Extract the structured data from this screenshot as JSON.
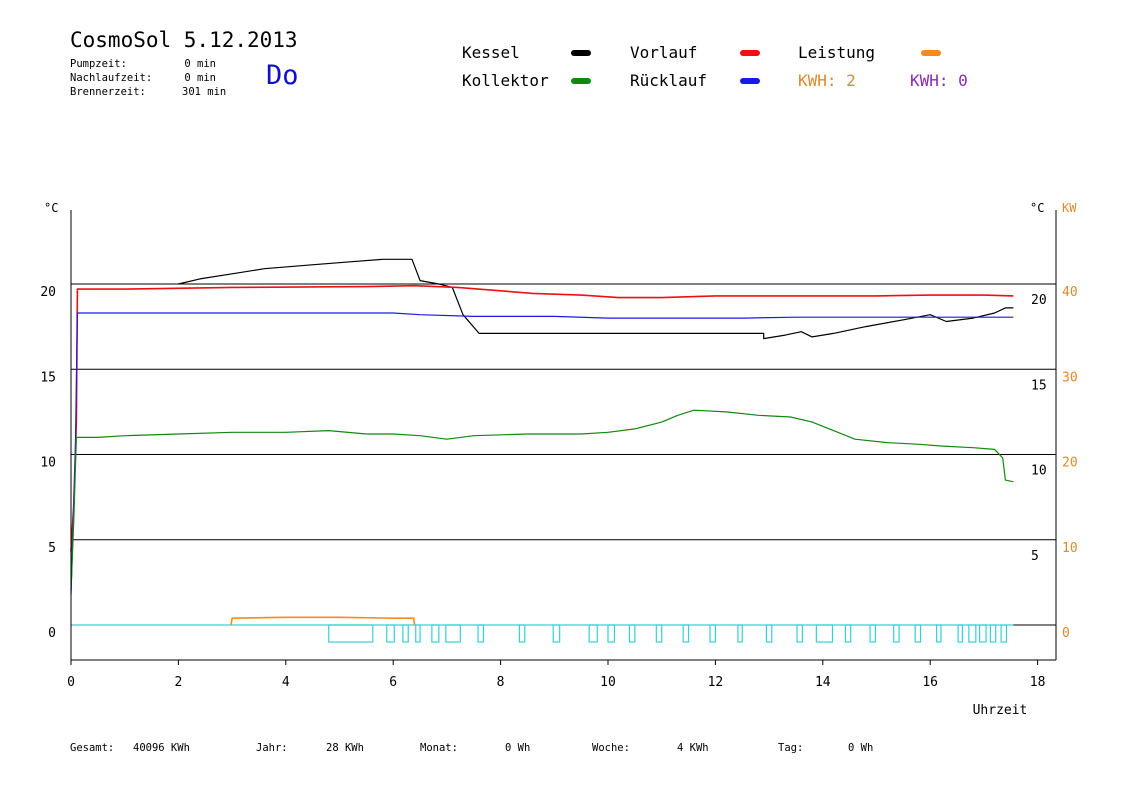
{
  "header": {
    "title": "CosmoSol 5.12.2013",
    "weekday": "Do",
    "stats": [
      {
        "label": "Pumpzeit:",
        "value": "0 min"
      },
      {
        "label": "Nachlaufzeit:",
        "value": "0 min"
      },
      {
        "label": "Brennerzeit:",
        "value": "301 min"
      }
    ]
  },
  "legend": {
    "kessel": {
      "label": "Kessel",
      "color": "#000000"
    },
    "vorlauf": {
      "label": "Vorlauf",
      "color": "#ee1111"
    },
    "leistung": {
      "label": "Leistung",
      "color": "#f58a1f"
    },
    "kollektor": {
      "label": "Kollektor",
      "color": "#118811"
    },
    "ruecklauf": {
      "label": "Rücklauf",
      "color": "#1a1ae6"
    },
    "kwh1": {
      "label": "KWH: 2",
      "color": "#e08a28"
    },
    "kwh2": {
      "label": "KWH: 0",
      "color": "#8a2ab8"
    }
  },
  "footer": [
    {
      "label": "Gesamt:",
      "value": "40096 KWh"
    },
    {
      "label": "Jahr:",
      "value": "28 KWh"
    },
    {
      "label": "Monat:",
      "value": "0 Wh"
    },
    {
      "label": "Woche:",
      "value": "4 KWh"
    },
    {
      "label": "Tag:",
      "value": "0 Wh"
    }
  ],
  "chart_data": {
    "type": "line",
    "xlabel": "Uhrzeit",
    "ylabel_left": "°C",
    "ylabel_right": "°C",
    "ylabel_right2": "KW",
    "xlim": [
      0,
      18
    ],
    "ylim": [
      -2,
      24.5
    ],
    "x_ticks": [
      "0",
      "2",
      "4",
      "6",
      "8",
      "10",
      "12",
      "14",
      "16",
      "18"
    ],
    "y_ticks_left": [
      "0",
      "5",
      "10",
      "15",
      "20"
    ],
    "y_ticks_right": [
      "5",
      "10",
      "15",
      "20"
    ],
    "y_ticks_kw": [
      "0",
      "10",
      "20",
      "30",
      "40"
    ],
    "grid_lines_y": [
      0,
      5,
      10,
      15,
      20
    ],
    "series": [
      {
        "name": "Kessel",
        "color": "#000000",
        "points": [
          [
            2.0,
            20.0
          ],
          [
            2.4,
            20.3
          ],
          [
            3.0,
            20.6
          ],
          [
            3.6,
            20.9
          ],
          [
            4.4,
            21.1
          ],
          [
            5.2,
            21.3
          ],
          [
            5.8,
            21.45
          ],
          [
            6.35,
            21.45
          ],
          [
            6.5,
            20.2
          ],
          [
            6.85,
            20.0
          ],
          [
            7.1,
            19.8
          ],
          [
            7.3,
            18.2
          ],
          [
            7.6,
            17.1
          ],
          [
            8.5,
            17.1
          ],
          [
            10.0,
            17.1
          ],
          [
            11.5,
            17.1
          ],
          [
            12.9,
            17.1
          ],
          [
            12.9,
            16.8
          ],
          [
            13.3,
            17.0
          ],
          [
            13.6,
            17.2
          ],
          [
            13.8,
            16.9
          ],
          [
            14.2,
            17.1
          ],
          [
            14.8,
            17.5
          ],
          [
            15.5,
            17.9
          ],
          [
            16.0,
            18.2
          ],
          [
            16.3,
            17.8
          ],
          [
            16.8,
            18.0
          ],
          [
            17.2,
            18.3
          ],
          [
            17.4,
            18.6
          ],
          [
            17.55,
            18.6
          ]
        ]
      },
      {
        "name": "Vorlauf",
        "color": "#ee1111",
        "points": [
          [
            0.0,
            4.3
          ],
          [
            0.05,
            7.0
          ],
          [
            0.1,
            12.0
          ],
          [
            0.12,
            19.7
          ],
          [
            1.0,
            19.7
          ],
          [
            3.0,
            19.8
          ],
          [
            5.5,
            19.85
          ],
          [
            6.4,
            19.9
          ],
          [
            7.2,
            19.8
          ],
          [
            8.0,
            19.6
          ],
          [
            8.6,
            19.45
          ],
          [
            9.5,
            19.35
          ],
          [
            10.2,
            19.2
          ],
          [
            11.0,
            19.2
          ],
          [
            12.0,
            19.3
          ],
          [
            13.0,
            19.3
          ],
          [
            14.0,
            19.3
          ],
          [
            15.0,
            19.3
          ],
          [
            16.0,
            19.35
          ],
          [
            17.0,
            19.35
          ],
          [
            17.55,
            19.3
          ]
        ]
      },
      {
        "name": "Rücklauf",
        "color": "#1a1ae6",
        "points": [
          [
            0.0,
            1.8
          ],
          [
            0.08,
            10.0
          ],
          [
            0.12,
            18.3
          ],
          [
            2.0,
            18.3
          ],
          [
            4.0,
            18.3
          ],
          [
            6.0,
            18.3
          ],
          [
            6.5,
            18.2
          ],
          [
            7.5,
            18.1
          ],
          [
            9.0,
            18.1
          ],
          [
            10.0,
            18.0
          ],
          [
            11.0,
            18.0
          ],
          [
            12.5,
            18.0
          ],
          [
            13.5,
            18.05
          ],
          [
            15.0,
            18.05
          ],
          [
            16.0,
            18.05
          ],
          [
            17.0,
            18.05
          ],
          [
            17.55,
            18.05
          ]
        ]
      },
      {
        "name": "Kollektor",
        "color": "#118811",
        "points": [
          [
            0.0,
            2.0
          ],
          [
            0.05,
            6.0
          ],
          [
            0.1,
            11.0
          ],
          [
            0.5,
            11.0
          ],
          [
            1.0,
            11.1
          ],
          [
            2.0,
            11.2
          ],
          [
            3.0,
            11.3
          ],
          [
            4.0,
            11.3
          ],
          [
            4.8,
            11.4
          ],
          [
            5.5,
            11.2
          ],
          [
            6.0,
            11.2
          ],
          [
            6.5,
            11.1
          ],
          [
            7.0,
            10.9
          ],
          [
            7.5,
            11.1
          ],
          [
            8.5,
            11.2
          ],
          [
            9.5,
            11.2
          ],
          [
            10.0,
            11.3
          ],
          [
            10.5,
            11.5
          ],
          [
            11.0,
            11.9
          ],
          [
            11.3,
            12.3
          ],
          [
            11.6,
            12.6
          ],
          [
            12.2,
            12.5
          ],
          [
            12.8,
            12.3
          ],
          [
            13.4,
            12.2
          ],
          [
            13.8,
            11.9
          ],
          [
            14.2,
            11.4
          ],
          [
            14.6,
            10.9
          ],
          [
            15.2,
            10.7
          ],
          [
            15.8,
            10.6
          ],
          [
            16.2,
            10.5
          ],
          [
            16.8,
            10.4
          ],
          [
            17.2,
            10.3
          ],
          [
            17.35,
            9.8
          ],
          [
            17.4,
            8.5
          ],
          [
            17.55,
            8.4
          ]
        ]
      },
      {
        "name": "Leistung",
        "color": "#f58a1f",
        "points": [
          [
            2.98,
            0
          ],
          [
            3.0,
            0.4
          ],
          [
            4.0,
            0.45
          ],
          [
            5.0,
            0.45
          ],
          [
            6.0,
            0.4
          ],
          [
            6.38,
            0.4
          ],
          [
            6.4,
            0
          ]
        ]
      }
    ],
    "pump_pulses": {
      "color": "#30d4d4",
      "baseline": 0,
      "intervals": [
        [
          4.8,
          5.62
        ],
        [
          5.88,
          6.02
        ],
        [
          6.18,
          6.28
        ],
        [
          6.42,
          6.5
        ],
        [
          6.72,
          6.85
        ],
        [
          6.98,
          7.25
        ],
        [
          7.58,
          7.68
        ],
        [
          8.35,
          8.45
        ],
        [
          8.98,
          9.1
        ],
        [
          9.65,
          9.8
        ],
        [
          10.0,
          10.12
        ],
        [
          10.4,
          10.5
        ],
        [
          10.9,
          11.0
        ],
        [
          11.4,
          11.5
        ],
        [
          11.9,
          12.0
        ],
        [
          12.42,
          12.5
        ],
        [
          12.95,
          13.05
        ],
        [
          13.52,
          13.62
        ],
        [
          13.88,
          14.18
        ],
        [
          14.42,
          14.52
        ],
        [
          14.88,
          14.98
        ],
        [
          15.32,
          15.42
        ],
        [
          15.72,
          15.82
        ],
        [
          16.12,
          16.2
        ],
        [
          16.52,
          16.6
        ],
        [
          16.72,
          16.85
        ],
        [
          16.92,
          17.04
        ],
        [
          17.12,
          17.22
        ],
        [
          17.32,
          17.42
        ]
      ]
    }
  }
}
